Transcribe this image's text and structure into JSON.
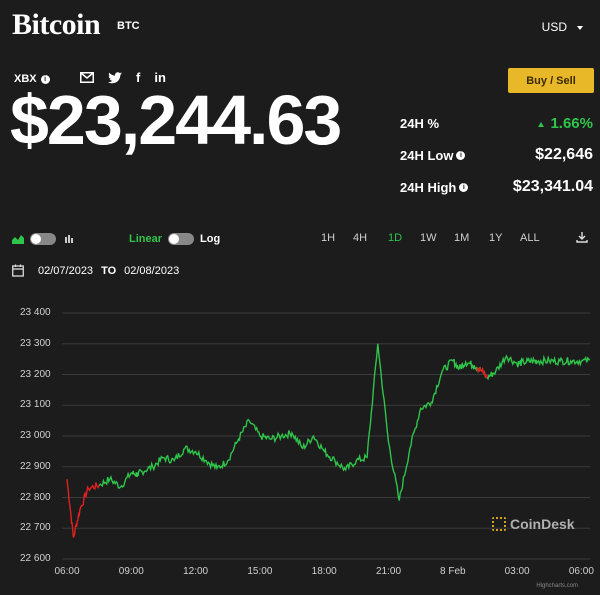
{
  "header": {
    "title": "Bitcoin",
    "ticker": "BTC",
    "currency": "USD"
  },
  "quote": {
    "exchange": "XBX",
    "price": "$23,244.63",
    "buy_sell_label": "Buy / Sell",
    "stats": [
      {
        "label": "24H %",
        "value": "1.66%",
        "accent": "#2fc44a"
      },
      {
        "label": "24H Low",
        "value": "$22,646"
      },
      {
        "label": "24H High",
        "value": "$23,341.04"
      }
    ]
  },
  "social_icons": [
    "mail-icon",
    "twitter-icon",
    "facebook-icon",
    "linkedin-icon"
  ],
  "controls": {
    "linear_label": "Linear",
    "log_label": "Log",
    "timeframes": [
      "1H",
      "4H",
      "1D",
      "1W",
      "1M",
      "1Y",
      "ALL"
    ],
    "active_timeframe": "1D"
  },
  "date_range": {
    "from": "02/07/2023",
    "to_label": "TO",
    "to": "02/08/2023"
  },
  "watermark": "CoinDesk",
  "credit": "Highcharts.com",
  "chart_data": {
    "type": "line",
    "y_ticks": [
      "23 400",
      "23 300",
      "23 200",
      "23 100",
      "23 000",
      "22 900",
      "22 800",
      "22 700",
      "22 600"
    ],
    "x_ticks": [
      "06:00",
      "09:00",
      "12:00",
      "15:00",
      "18:00",
      "21:00",
      "8 Feb",
      "03:00",
      "06:00"
    ],
    "ylim": [
      22600,
      23400
    ],
    "grid": true,
    "colors": {
      "up": "#2fc44a",
      "down": "#e02020",
      "grid": "#3a3a3a"
    },
    "x_hours_since_feb7": [
      0,
      0.3,
      0.6,
      1,
      1.5,
      2,
      2.5,
      3,
      3.3,
      3.5,
      4,
      4.5,
      5,
      5.5,
      6,
      6.5,
      7,
      7.5,
      8,
      8.5,
      9,
      9.5,
      10,
      10.5,
      11,
      11.5,
      12,
      12.5,
      13,
      13.5,
      14,
      14.5,
      15,
      15.5,
      16,
      16.5,
      17,
      17.5,
      18,
      18.3,
      18.6,
      19,
      19.3,
      19.6,
      20,
      20.5,
      21,
      21.3,
      21.7,
      22,
      22.5,
      23,
      23.5,
      24,
      24.5
    ],
    "values": [
      22860,
      22670,
      22760,
      22830,
      22840,
      22860,
      22835,
      22880,
      22875,
      22885,
      22900,
      22930,
      22920,
      22960,
      22950,
      22920,
      22895,
      22920,
      22990,
      23050,
      23000,
      22990,
      23000,
      23010,
      22960,
      23000,
      22950,
      22920,
      22890,
      22920,
      22930,
      23300,
      22980,
      22790,
      22960,
      23090,
      23110,
      23210,
      23245,
      23220,
      23240,
      23230,
      23215,
      23190,
      23210,
      23260,
      23235,
      23240,
      23244,
      23244,
      23244,
      23244,
      23244,
      23244,
      23244
    ],
    "down_until_index": 4
  }
}
